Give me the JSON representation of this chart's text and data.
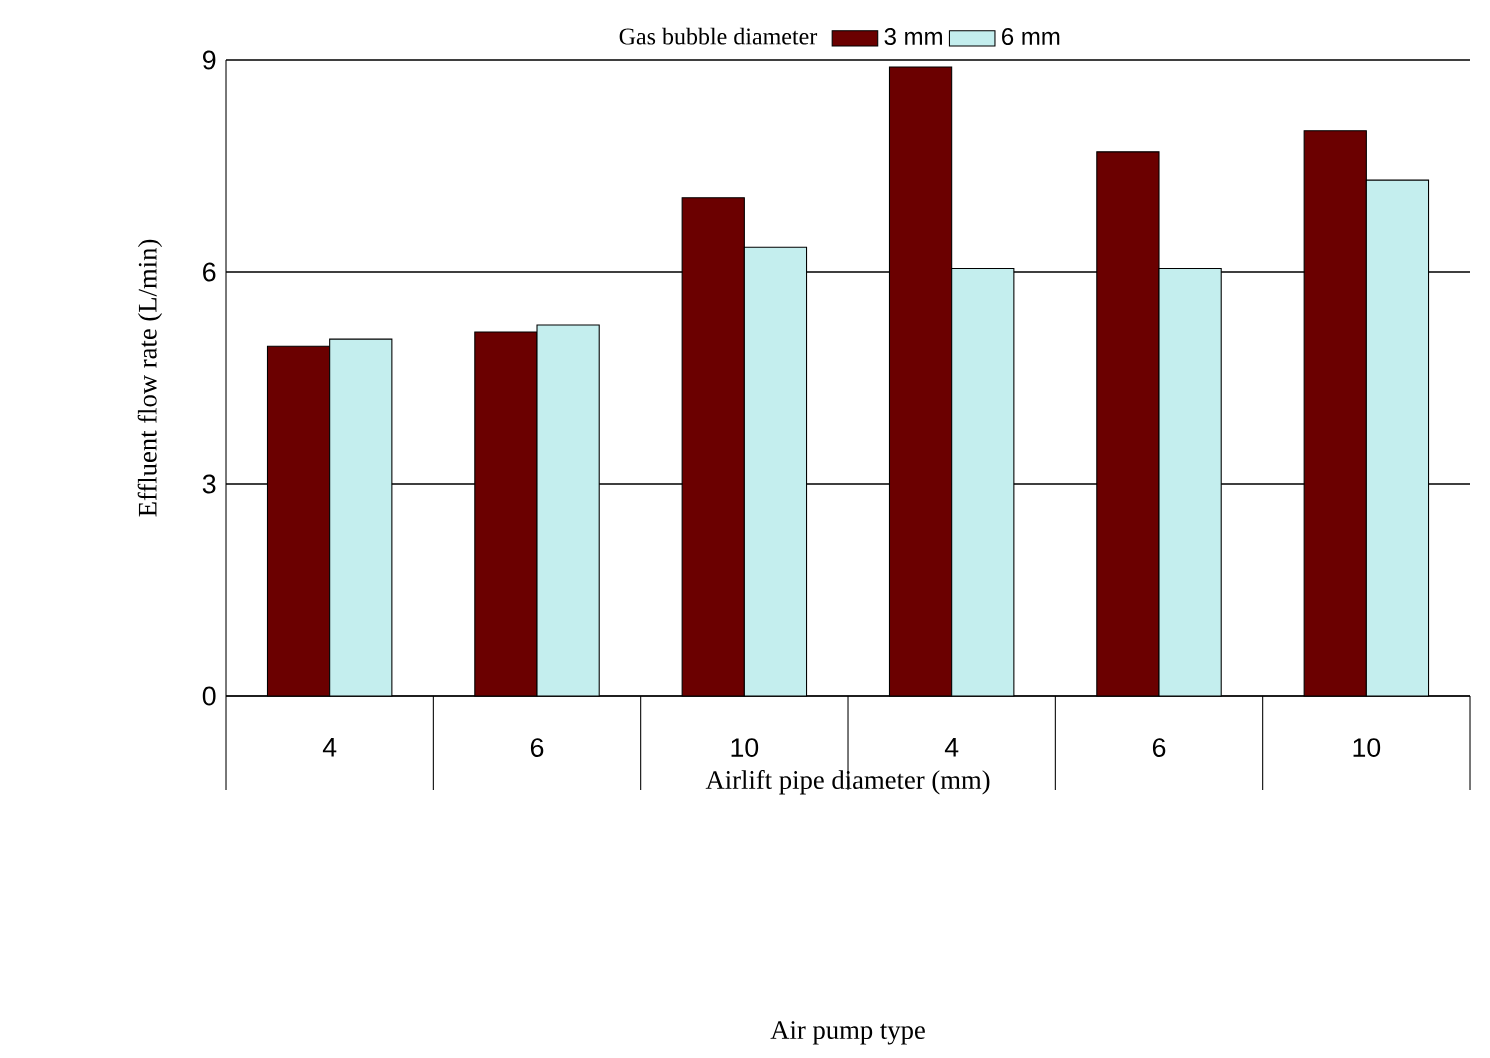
{
  "chart_data": {
    "type": "bar",
    "legend_title": "Gas bubble diameter",
    "xlabel": "Airlift pipe diameter (mm)",
    "ylabel": "Effluent flow rate (L/min)",
    "annotations": [
      "Air pump type"
    ],
    "categories": [
      "4",
      "6",
      "10",
      "4",
      "6",
      "10"
    ],
    "series": [
      {
        "name": "3 mm",
        "color": "#6b0000",
        "values": [
          4.95,
          5.15,
          7.05,
          8.9,
          7.7,
          8.0
        ]
      },
      {
        "name": "6 mm",
        "color": "#c4eeee",
        "values": [
          5.05,
          5.25,
          6.35,
          6.05,
          6.05,
          7.3
        ]
      }
    ],
    "ylim": [
      0,
      9
    ],
    "yticks": [
      0,
      3,
      6,
      9
    ],
    "grid": "y",
    "legend": "top"
  }
}
